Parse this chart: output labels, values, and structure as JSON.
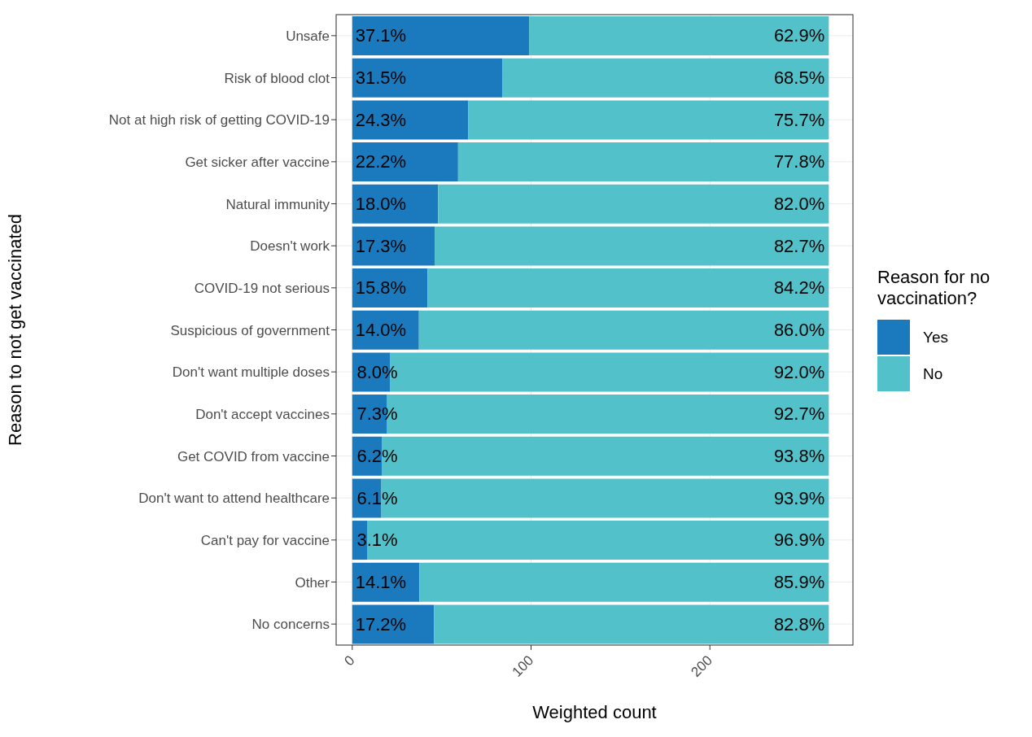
{
  "chart_data": {
    "type": "bar",
    "orientation": "horizontal",
    "stacked": true,
    "categories": [
      "Unsafe",
      "Risk of blood clot",
      "Not at high risk of getting COVID-19",
      "Get sicker after vaccine",
      "Natural immunity",
      "Doesn't work",
      "COVID-19 not serious",
      "Suspicious of government",
      "Don't want multiple doses",
      "Don't accept vaccines",
      "Get COVID from vaccine",
      "Don't want to attend healthcare",
      "Can't pay for vaccine",
      "Other",
      "No concerns"
    ],
    "series": [
      {
        "name": "Yes",
        "color": "#1a7abd",
        "values": [
          98.9,
          83.9,
          64.8,
          59.2,
          48.0,
          46.1,
          42.1,
          37.3,
          21.3,
          19.5,
          16.5,
          16.3,
          8.3,
          37.6,
          45.8
        ]
      },
      {
        "name": "No",
        "color": "#52c1c9",
        "values": [
          167.6,
          182.6,
          201.7,
          207.3,
          218.5,
          220.4,
          224.4,
          229.2,
          245.2,
          247.0,
          250.0,
          250.2,
          258.2,
          228.9,
          220.7
        ]
      }
    ],
    "annotations": [
      {
        "text": "37.1%",
        "x": 16,
        "y": "Unsafe"
      },
      {
        "text": "62.9%",
        "x": 250,
        "y": "Unsafe"
      },
      {
        "text": "31.5%",
        "x": 16,
        "y": "Risk of blood clot"
      },
      {
        "text": "68.5%",
        "x": 250,
        "y": "Risk of blood clot"
      },
      {
        "text": "24.3%",
        "x": 16,
        "y": "Not at high risk of getting COVID-19"
      },
      {
        "text": "75.7%",
        "x": 250,
        "y": "Not at high risk of getting COVID-19"
      },
      {
        "text": "22.2%",
        "x": 16,
        "y": "Get sicker after vaccine"
      },
      {
        "text": "77.8%",
        "x": 250,
        "y": "Get sicker after vaccine"
      },
      {
        "text": "18.0%",
        "x": 16,
        "y": "Natural immunity"
      },
      {
        "text": "82.0%",
        "x": 250,
        "y": "Natural immunity"
      },
      {
        "text": "17.3%",
        "x": 16,
        "y": "Doesn't work"
      },
      {
        "text": "82.7%",
        "x": 250,
        "y": "Doesn't work"
      },
      {
        "text": "15.8%",
        "x": 16,
        "y": "COVID-19 not serious"
      },
      {
        "text": "84.2%",
        "x": 250,
        "y": "COVID-19 not serious"
      },
      {
        "text": "14.0%",
        "x": 16,
        "y": "Suspicious of government"
      },
      {
        "text": "86.0%",
        "x": 250,
        "y": "Suspicious of government"
      },
      {
        "text": "8.0%",
        "x": 14,
        "y": "Don't want multiple doses"
      },
      {
        "text": "92.0%",
        "x": 250,
        "y": "Don't want multiple doses"
      },
      {
        "text": "7.3%",
        "x": 14,
        "y": "Don't accept vaccines"
      },
      {
        "text": "92.7%",
        "x": 250,
        "y": "Don't accept vaccines"
      },
      {
        "text": "6.2%",
        "x": 14,
        "y": "Get COVID from vaccine"
      },
      {
        "text": "93.8%",
        "x": 250,
        "y": "Get COVID from vaccine"
      },
      {
        "text": "6.1%",
        "x": 14,
        "y": "Don't want to attend healthcare"
      },
      {
        "text": "93.9%",
        "x": 250,
        "y": "Don't want to attend healthcare"
      },
      {
        "text": "3.1%",
        "x": 14,
        "y": "Can't pay for vaccine"
      },
      {
        "text": "96.9%",
        "x": 250,
        "y": "Can't pay for vaccine"
      },
      {
        "text": "14.1%",
        "x": 16,
        "y": "Other"
      },
      {
        "text": "85.9%",
        "x": 250,
        "y": "Other"
      },
      {
        "text": "17.2%",
        "x": 16,
        "y": "No concerns"
      },
      {
        "text": "82.8%",
        "x": 250,
        "y": "No concerns"
      }
    ],
    "xlabel": "Weighted count",
    "ylabel": "Reason to not get vaccinated",
    "legend_title": "Reason for no vaccination?",
    "xlim": [
      -9,
      280
    ],
    "xticks": [
      0,
      100,
      200
    ],
    "grid": true,
    "legend": "right"
  }
}
